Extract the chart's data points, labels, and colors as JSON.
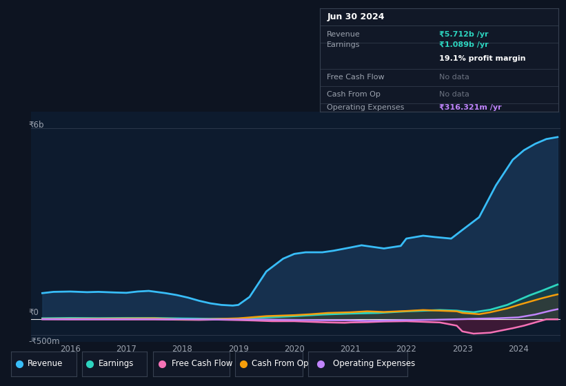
{
  "background_color": "#0d1421",
  "plot_bg_color": "#0d1b2e",
  "ylabel_6b": "₹6b",
  "ylabel_0": "₹0",
  "ylabel_neg500m": "-₹500m",
  "legend_items": [
    "Revenue",
    "Earnings",
    "Free Cash Flow",
    "Cash From Op",
    "Operating Expenses"
  ],
  "legend_colors": [
    "#38bdf8",
    "#2dd4bf",
    "#f472b6",
    "#f59e0b",
    "#c084fc"
  ],
  "info_box": {
    "date": "Jun 30 2024",
    "revenue_label": "Revenue",
    "revenue_value": "₹5.712b /yr",
    "revenue_color": "#2dd4bf",
    "earnings_label": "Earnings",
    "earnings_value": "₹1.089b /yr",
    "earnings_color": "#2dd4bf",
    "margin_text": "19.1% profit margin",
    "fcf_label": "Free Cash Flow",
    "fcf_value": "No data",
    "cashop_label": "Cash From Op",
    "cashop_value": "No data",
    "opex_label": "Operating Expenses",
    "opex_value": "₹316.321m /yr",
    "opex_color": "#c084fc",
    "box_bg": "#111827",
    "box_border": "#374151",
    "text_color": "#9ca3af",
    "nodata_color": "#6b7280",
    "title_color": "#ffffff"
  },
  "ylim": [
    -700,
    6500
  ],
  "xlim": [
    2015.3,
    2024.75
  ],
  "revenue": {
    "x": [
      2015.5,
      2015.7,
      2016.0,
      2016.3,
      2016.5,
      2016.8,
      2017.0,
      2017.2,
      2017.4,
      2017.7,
      2017.9,
      2018.1,
      2018.3,
      2018.5,
      2018.7,
      2018.9,
      2019.0,
      2019.2,
      2019.5,
      2019.8,
      2020.0,
      2020.2,
      2020.5,
      2020.7,
      2021.0,
      2021.2,
      2021.4,
      2021.6,
      2021.9,
      2022.0,
      2022.3,
      2022.5,
      2022.8,
      2023.0,
      2023.3,
      2023.6,
      2023.9,
      2024.1,
      2024.3,
      2024.5,
      2024.7
    ],
    "y": [
      820,
      860,
      870,
      850,
      860,
      840,
      830,
      870,
      890,
      820,
      760,
      680,
      580,
      500,
      450,
      430,
      450,
      700,
      1500,
      1900,
      2050,
      2100,
      2100,
      2150,
      2250,
      2320,
      2270,
      2220,
      2300,
      2530,
      2620,
      2580,
      2530,
      2800,
      3200,
      4200,
      5000,
      5300,
      5500,
      5650,
      5712
    ],
    "color": "#38bdf8",
    "linewidth": 2.0,
    "fill_color": "#1a3a5c",
    "fill_alpha": 0.7
  },
  "earnings": {
    "x": [
      2015.5,
      2016.0,
      2016.5,
      2017.0,
      2017.5,
      2018.0,
      2018.5,
      2019.0,
      2019.5,
      2020.0,
      2020.5,
      2021.0,
      2021.5,
      2022.0,
      2022.3,
      2022.6,
      2022.9,
      2023.0,
      2023.2,
      2023.5,
      2023.8,
      2024.0,
      2024.2,
      2024.4,
      2024.6,
      2024.7
    ],
    "y": [
      30,
      40,
      35,
      40,
      40,
      25,
      15,
      20,
      60,
      100,
      150,
      180,
      200,
      250,
      270,
      290,
      270,
      250,
      220,
      300,
      450,
      600,
      750,
      880,
      1020,
      1089
    ],
    "color": "#2dd4bf",
    "linewidth": 2.0,
    "fill_color": "#134e4a",
    "fill_alpha": 0.5
  },
  "free_cash_flow": {
    "x": [
      2015.5,
      2016.0,
      2016.5,
      2017.0,
      2017.5,
      2018.0,
      2018.3,
      2018.6,
      2019.0,
      2019.3,
      2019.6,
      2020.0,
      2020.3,
      2020.6,
      2020.9,
      2021.0,
      2021.3,
      2021.6,
      2022.0,
      2022.3,
      2022.6,
      2022.9,
      2023.0,
      2023.2,
      2023.5,
      2023.7,
      2023.9,
      2024.1,
      2024.3,
      2024.5,
      2024.7
    ],
    "y": [
      0,
      -5,
      -5,
      -5,
      -5,
      -15,
      -20,
      -10,
      -25,
      -40,
      -60,
      -60,
      -80,
      -100,
      -110,
      -100,
      -90,
      -70,
      -60,
      -80,
      -100,
      -200,
      -380,
      -450,
      -420,
      -350,
      -280,
      -200,
      -100,
      0,
      0
    ],
    "color": "#f472b6",
    "linewidth": 1.8,
    "fill_color": "#831843",
    "fill_alpha": 0.4
  },
  "cash_from_op": {
    "x": [
      2015.5,
      2016.0,
      2016.5,
      2017.0,
      2017.5,
      2018.0,
      2018.5,
      2019.0,
      2019.5,
      2020.0,
      2020.3,
      2020.6,
      2021.0,
      2021.3,
      2021.6,
      2022.0,
      2022.3,
      2022.6,
      2022.9,
      2023.0,
      2023.3,
      2023.5,
      2023.8,
      2024.0,
      2024.2,
      2024.4,
      2024.6,
      2024.7
    ],
    "y": [
      10,
      15,
      20,
      25,
      30,
      -5,
      5,
      30,
      100,
      130,
      160,
      200,
      220,
      250,
      230,
      260,
      290,
      270,
      250,
      200,
      160,
      220,
      340,
      450,
      550,
      650,
      740,
      780
    ],
    "color": "#f59e0b",
    "linewidth": 1.8,
    "fill_color": "#78350f",
    "fill_alpha": 0.25
  },
  "operating_expenses": {
    "x": [
      2015.5,
      2016.0,
      2016.5,
      2017.0,
      2017.5,
      2018.0,
      2018.5,
      2019.0,
      2019.5,
      2020.0,
      2020.5,
      2021.0,
      2021.3,
      2021.5,
      2022.0,
      2022.5,
      2023.0,
      2023.3,
      2023.6,
      2024.0,
      2024.3,
      2024.6,
      2024.7
    ],
    "y": [
      5,
      5,
      5,
      5,
      5,
      0,
      -5,
      -5,
      -10,
      -20,
      -30,
      -35,
      -50,
      -45,
      -25,
      -15,
      5,
      20,
      30,
      60,
      150,
      280,
      316
    ],
    "color": "#c084fc",
    "linewidth": 1.8,
    "fill": false
  }
}
